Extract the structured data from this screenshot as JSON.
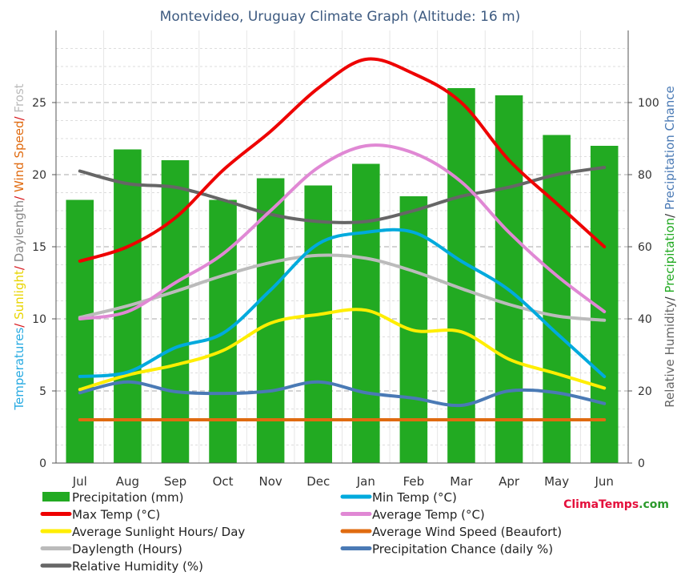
{
  "chart_data": {
    "type": "bar",
    "title": "Montevideo, Uruguay Climate Graph (Altitude: 16 m)",
    "categories": [
      "Jul",
      "Aug",
      "Sep",
      "Oct",
      "Nov",
      "Dec",
      "Jan",
      "Feb",
      "Mar",
      "Apr",
      "May",
      "Jun"
    ],
    "left_axis": {
      "ylim": [
        0,
        30
      ],
      "ticks": [
        0,
        5,
        10,
        15,
        20,
        25
      ],
      "label_parts": [
        {
          "text": "Temperatures",
          "color": "#29abe2"
        },
        {
          "text": "/ ",
          "color": "#d7141a"
        },
        {
          "text": "Sunlight",
          "color": "#e8d400"
        },
        {
          "text": "/ ",
          "color": "#d7141a"
        },
        {
          "text": "Daylength",
          "color": "#888888"
        },
        {
          "text": "/ ",
          "color": "#d7141a"
        },
        {
          "text": "Wind Speed",
          "color": "#e06b10"
        },
        {
          "text": "/ ",
          "color": "#d7141a"
        },
        {
          "text": "Frost",
          "color": "#bbbbbb"
        }
      ]
    },
    "right_axis": {
      "ylim": [
        0,
        120
      ],
      "ticks": [
        0,
        20,
        40,
        60,
        80,
        100
      ],
      "label_parts": [
        {
          "text": "Relative Humidity",
          "color": "#666666"
        },
        {
          "text": "/ ",
          "color": "#333333"
        },
        {
          "text": "Precipitation",
          "color": "#22aa22"
        },
        {
          "text": "/ ",
          "color": "#333333"
        },
        {
          "text": "Precipitation Chance",
          "color": "#4a7ab5"
        }
      ]
    },
    "grid": true,
    "series": [
      {
        "name": "Precipitation (mm)",
        "kind": "bar",
        "axis": "right",
        "color": "#22aa22",
        "values": [
          73,
          87,
          84,
          73,
          79,
          77,
          83,
          74,
          104,
          102,
          91,
          88
        ]
      },
      {
        "name": "Min Temp (°C)",
        "kind": "line",
        "axis": "left",
        "color": "#00aadd",
        "values": [
          6.0,
          6.3,
          8.0,
          9.0,
          12.0,
          15.2,
          16.0,
          16.0,
          14.0,
          12.0,
          9.0,
          6.0
        ]
      },
      {
        "name": "Max Temp (°C)",
        "kind": "line",
        "axis": "left",
        "color": "#ee0000",
        "values": [
          14.0,
          15.0,
          17.0,
          20.3,
          23.0,
          26.0,
          28.0,
          27.0,
          25.0,
          21.0,
          18.0,
          15.0
        ]
      },
      {
        "name": "Average Temp (°C)",
        "kind": "line",
        "axis": "left",
        "color": "#e088d4",
        "values": [
          10.0,
          10.5,
          12.5,
          14.5,
          17.5,
          20.5,
          22.0,
          21.5,
          19.5,
          16.0,
          13.0,
          10.5
        ]
      },
      {
        "name": "Average Sunlight Hours/ Day",
        "kind": "line",
        "axis": "left",
        "color": "#ffee00",
        "values": [
          5.1,
          6.1,
          6.8,
          7.8,
          9.7,
          10.3,
          10.6,
          9.2,
          9.1,
          7.2,
          6.2,
          5.2
        ]
      },
      {
        "name": "Average Wind Speed (Beaufort)",
        "kind": "line",
        "axis": "left",
        "color": "#e06b10",
        "values": [
          3.0,
          3.0,
          3.0,
          3.0,
          3.0,
          3.0,
          3.0,
          3.0,
          3.0,
          3.0,
          3.0,
          3.0
        ]
      },
      {
        "name": "Daylength (Hours)",
        "kind": "line",
        "axis": "left",
        "color": "#bbbbbb",
        "values": [
          10.1,
          10.9,
          11.9,
          13.0,
          13.9,
          14.4,
          14.2,
          13.3,
          12.1,
          11.0,
          10.2,
          9.9
        ]
      },
      {
        "name": "Precipitation Chance (daily %)",
        "kind": "line",
        "axis": "right",
        "color": "#4a7ab5",
        "values": [
          19.5,
          22.5,
          19.8,
          19.3,
          20.0,
          22.5,
          19.5,
          18.0,
          16.0,
          20.0,
          19.5,
          16.5
        ]
      },
      {
        "name": "Relative Humidity (%)",
        "kind": "line",
        "axis": "right",
        "color": "#666666",
        "values": [
          81,
          77.5,
          76.5,
          73,
          69,
          67,
          67,
          70,
          74,
          76.5,
          80,
          82
        ]
      }
    ],
    "legend_order": [
      "Precipitation (mm)",
      "Min Temp (°C)",
      "Max Temp (°C)",
      "Average Temp (°C)",
      "Average Sunlight Hours/ Day",
      "Average Wind Speed (Beaufort)",
      "Daylength (Hours)",
      "Precipitation Chance (daily %)",
      "Relative Humidity (%)"
    ],
    "legend_placement": "bottom"
  },
  "branding": {
    "part1": "Clima",
    "part1_color": "#e4103c",
    "part2": "Temps",
    "part2_color": "#e4103c",
    "part3": ".com",
    "part3_color": "#2b9a2b"
  }
}
